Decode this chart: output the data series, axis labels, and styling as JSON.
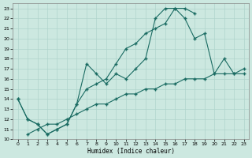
{
  "xlabel": "Humidex (Indice chaleur)",
  "bg_color": "#cce8e0",
  "grid_color": "#b0d4cc",
  "line_color": "#1a6b62",
  "xlim": [
    -0.5,
    23.5
  ],
  "ylim": [
    10,
    23.5
  ],
  "xticks": [
    0,
    1,
    2,
    3,
    4,
    5,
    6,
    7,
    8,
    9,
    10,
    11,
    12,
    13,
    14,
    15,
    16,
    17,
    18,
    19,
    20,
    21,
    22,
    23
  ],
  "yticks": [
    10,
    11,
    12,
    13,
    14,
    15,
    16,
    17,
    18,
    19,
    20,
    21,
    22,
    23
  ],
  "line1_x": [
    0,
    1,
    2,
    3,
    4,
    5,
    6,
    7,
    8,
    9,
    10,
    11,
    12,
    13,
    14,
    15,
    16,
    17,
    18
  ],
  "line1_y": [
    14,
    12,
    11.5,
    10.5,
    11,
    11.5,
    13.5,
    15,
    15.5,
    16,
    17.5,
    19,
    19.5,
    20.5,
    21,
    21.5,
    23,
    23,
    22.5
  ],
  "line2_x": [
    0,
    1,
    2,
    3,
    4,
    5,
    6,
    7,
    8,
    9,
    10,
    11,
    12,
    13,
    14,
    15,
    16,
    17,
    18,
    19,
    20,
    21,
    22,
    23
  ],
  "line2_y": [
    14,
    12,
    11.5,
    10.5,
    11,
    11.5,
    13.5,
    17.5,
    16.5,
    15.5,
    16.5,
    16,
    17,
    18,
    22,
    23,
    23,
    22,
    20,
    20.5,
    16.5,
    18,
    16.5,
    16.5
  ],
  "line3_x": [
    1,
    2,
    3,
    4,
    5,
    6,
    7,
    8,
    9,
    10,
    11,
    12,
    13,
    14,
    15,
    16,
    17,
    18,
    19,
    20,
    21,
    22,
    23
  ],
  "line3_y": [
    10.5,
    11,
    11.5,
    11.5,
    12,
    12.5,
    13,
    13.5,
    13.5,
    14,
    14.5,
    14.5,
    15,
    15,
    15.5,
    15.5,
    16,
    16,
    16,
    16.5,
    16.5,
    16.5,
    17
  ]
}
